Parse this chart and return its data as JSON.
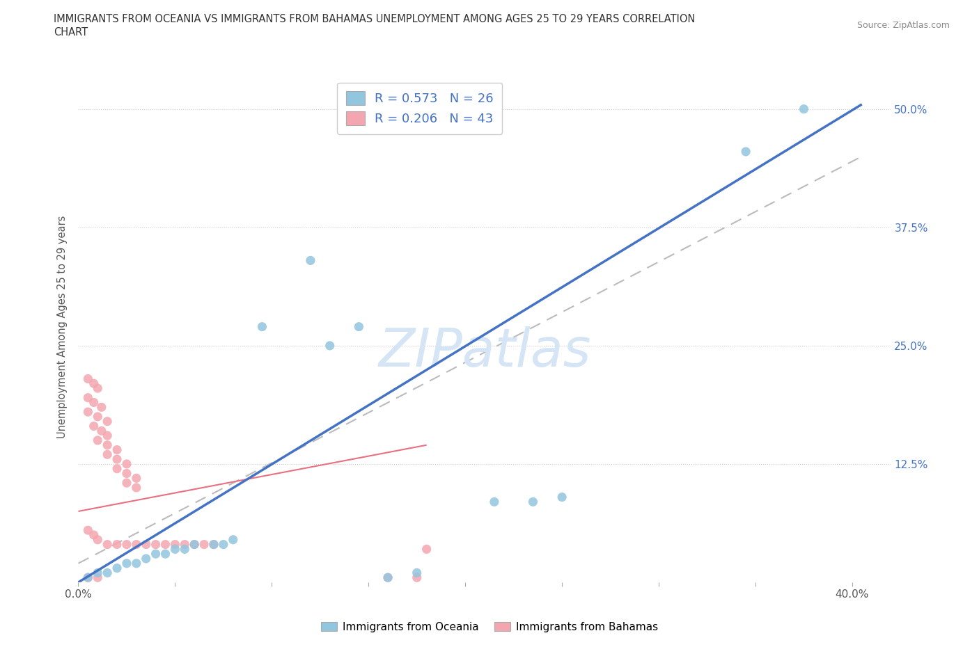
{
  "title_line1": "IMMIGRANTS FROM OCEANIA VS IMMIGRANTS FROM BAHAMAS UNEMPLOYMENT AMONG AGES 25 TO 29 YEARS CORRELATION",
  "title_line2": "CHART",
  "source": "Source: ZipAtlas.com",
  "ylabel": "Unemployment Among Ages 25 to 29 years",
  "xlim": [
    0.0,
    0.42
  ],
  "ylim": [
    0.0,
    0.54
  ],
  "xticks": [
    0.0,
    0.05,
    0.1,
    0.15,
    0.2,
    0.25,
    0.3,
    0.35,
    0.4
  ],
  "xtick_labels_show": [
    "0.0%",
    "",
    "",
    "",
    "",
    "",
    "",
    "",
    "40.0%"
  ],
  "ytick_vals": [
    0.0,
    0.125,
    0.25,
    0.375,
    0.5
  ],
  "ytick_labels_right": [
    "",
    "12.5%",
    "25.0%",
    "37.5%",
    "50.0%"
  ],
  "oceania_R": 0.573,
  "oceania_N": 26,
  "bahamas_R": 0.206,
  "bahamas_N": 43,
  "oceania_color": "#92C5DE",
  "bahamas_color": "#F4A6B0",
  "line_blue": "#4472C4",
  "line_pink": "#E87080",
  "line_gray_dashed": "#BBBBBB",
  "label_color": "#4472C4",
  "watermark": "ZIPatlas",
  "watermark_color": "#D5E5F5",
  "oceania_pts": [
    [
      0.005,
      0.005
    ],
    [
      0.01,
      0.01
    ],
    [
      0.015,
      0.01
    ],
    [
      0.02,
      0.015
    ],
    [
      0.025,
      0.02
    ],
    [
      0.03,
      0.02
    ],
    [
      0.035,
      0.025
    ],
    [
      0.04,
      0.03
    ],
    [
      0.045,
      0.03
    ],
    [
      0.05,
      0.035
    ],
    [
      0.055,
      0.035
    ],
    [
      0.06,
      0.04
    ],
    [
      0.07,
      0.04
    ],
    [
      0.075,
      0.04
    ],
    [
      0.08,
      0.045
    ],
    [
      0.095,
      0.27
    ],
    [
      0.12,
      0.34
    ],
    [
      0.13,
      0.25
    ],
    [
      0.145,
      0.27
    ],
    [
      0.16,
      0.005
    ],
    [
      0.175,
      0.01
    ],
    [
      0.215,
      0.085
    ],
    [
      0.235,
      0.085
    ],
    [
      0.25,
      0.09
    ],
    [
      0.345,
      0.455
    ],
    [
      0.375,
      0.5
    ]
  ],
  "bahamas_pts": [
    [
      0.005,
      0.215
    ],
    [
      0.008,
      0.21
    ],
    [
      0.01,
      0.205
    ],
    [
      0.005,
      0.195
    ],
    [
      0.008,
      0.19
    ],
    [
      0.012,
      0.185
    ],
    [
      0.005,
      0.18
    ],
    [
      0.01,
      0.175
    ],
    [
      0.015,
      0.17
    ],
    [
      0.008,
      0.165
    ],
    [
      0.012,
      0.16
    ],
    [
      0.015,
      0.155
    ],
    [
      0.01,
      0.15
    ],
    [
      0.015,
      0.145
    ],
    [
      0.02,
      0.14
    ],
    [
      0.015,
      0.135
    ],
    [
      0.02,
      0.13
    ],
    [
      0.025,
      0.125
    ],
    [
      0.02,
      0.12
    ],
    [
      0.025,
      0.115
    ],
    [
      0.03,
      0.11
    ],
    [
      0.025,
      0.105
    ],
    [
      0.03,
      0.1
    ],
    [
      0.005,
      0.055
    ],
    [
      0.008,
      0.05
    ],
    [
      0.01,
      0.045
    ],
    [
      0.015,
      0.04
    ],
    [
      0.02,
      0.04
    ],
    [
      0.025,
      0.04
    ],
    [
      0.03,
      0.04
    ],
    [
      0.035,
      0.04
    ],
    [
      0.04,
      0.04
    ],
    [
      0.045,
      0.04
    ],
    [
      0.05,
      0.04
    ],
    [
      0.055,
      0.04
    ],
    [
      0.06,
      0.04
    ],
    [
      0.065,
      0.04
    ],
    [
      0.07,
      0.04
    ],
    [
      0.005,
      0.005
    ],
    [
      0.01,
      0.005
    ],
    [
      0.16,
      0.005
    ],
    [
      0.175,
      0.005
    ],
    [
      0.18,
      0.035
    ]
  ],
  "blue_line_x": [
    0.0,
    0.405
  ],
  "blue_line_y": [
    0.0,
    0.505
  ],
  "gray_line_x": [
    0.0,
    0.405
  ],
  "gray_line_y": [
    0.02,
    0.45
  ],
  "pink_line_x": [
    0.0,
    0.18
  ],
  "pink_line_y": [
    0.075,
    0.145
  ]
}
